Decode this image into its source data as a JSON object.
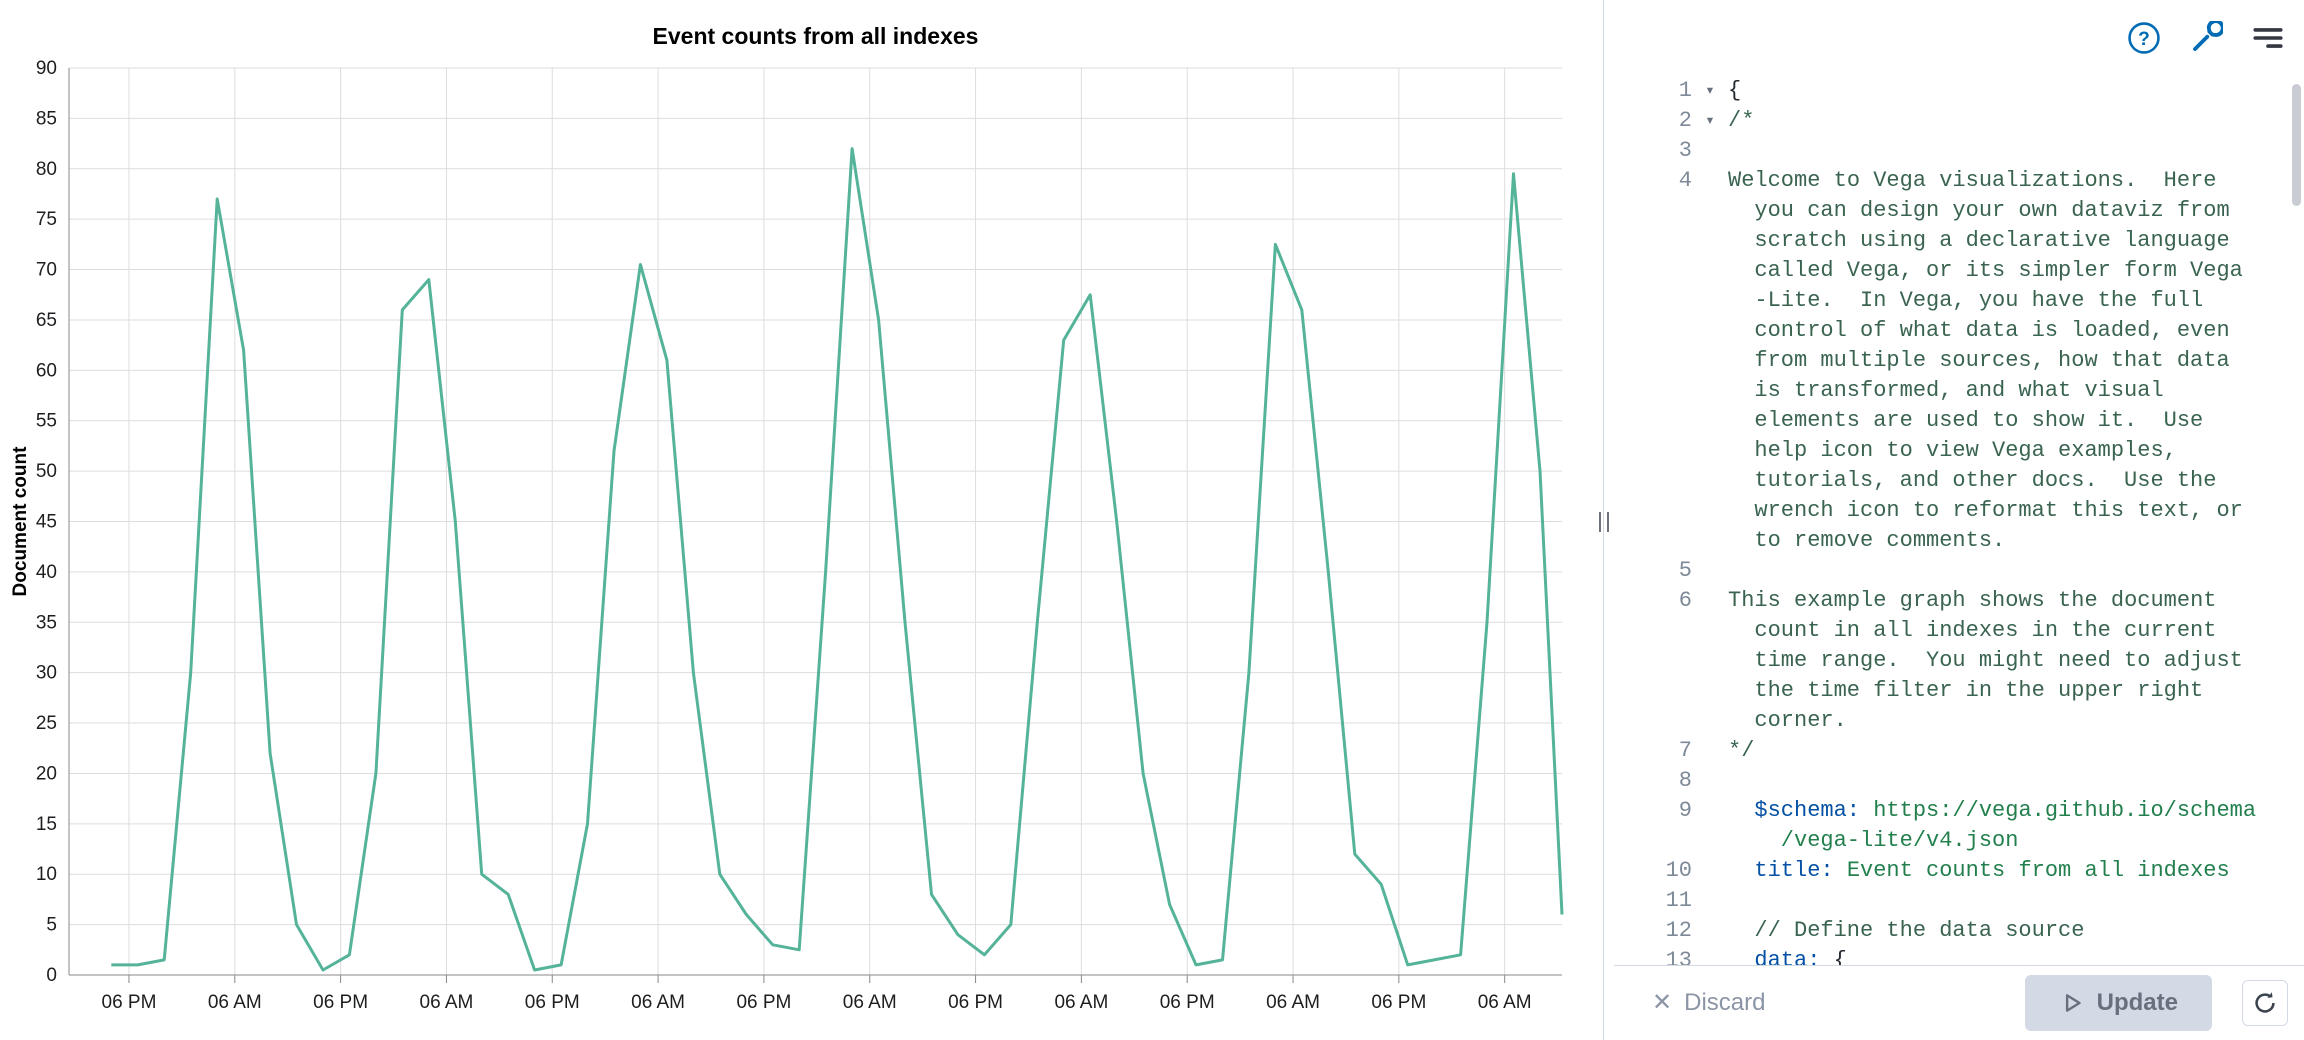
{
  "colors": {
    "accent_blue": "#006bb4",
    "chart_line": "#54b399",
    "grid": "#dddddd",
    "axis": "#888888",
    "token_plain": "#24292f",
    "token_comment": "#3a6450",
    "token_key": "#0451a5",
    "token_string": "#23804e"
  },
  "chart_data": {
    "type": "line",
    "title": "Event counts from all indexes",
    "xlabel": "",
    "ylabel": "Document count",
    "ylim": [
      0,
      90
    ],
    "ytick_step": 5,
    "xlim": [
      -0.8,
      168.5
    ],
    "x_unit": "hours",
    "grid": true,
    "legend": "none",
    "x_ticks": [
      {
        "x": 6,
        "label": "06 PM"
      },
      {
        "x": 18,
        "label": "06 AM"
      },
      {
        "x": 30,
        "label": "06 PM"
      },
      {
        "x": 42,
        "label": "06 AM"
      },
      {
        "x": 54,
        "label": "06 PM"
      },
      {
        "x": 66,
        "label": "06 AM"
      },
      {
        "x": 78,
        "label": "06 PM"
      },
      {
        "x": 90,
        "label": "06 AM"
      },
      {
        "x": 102,
        "label": "06 PM"
      },
      {
        "x": 114,
        "label": "06 AM"
      },
      {
        "x": 126,
        "label": "06 PM"
      },
      {
        "x": 138,
        "label": "06 AM"
      },
      {
        "x": 150,
        "label": "06 PM"
      },
      {
        "x": 162,
        "label": "06 AM"
      }
    ],
    "series": [
      {
        "name": "Document count",
        "color": "#54b399",
        "x": [
          4,
          7,
          10,
          13,
          16,
          19,
          22,
          25,
          28,
          31,
          34,
          37,
          40,
          43,
          46,
          49,
          52,
          55,
          58,
          61,
          64,
          67,
          70,
          73,
          76,
          79,
          82,
          85,
          88,
          91,
          94,
          97,
          100,
          103,
          106,
          109,
          112,
          115,
          118,
          121,
          124,
          127,
          130,
          133,
          136,
          139,
          142,
          145,
          148,
          151,
          154,
          157,
          160,
          163,
          166,
          168.5
        ],
        "values": [
          1,
          1,
          1.5,
          30,
          77,
          62,
          22,
          5,
          0.5,
          2,
          20,
          66,
          69,
          45,
          10,
          8,
          0.5,
          1,
          15,
          52,
          70.5,
          61,
          30,
          10,
          6,
          3,
          2.5,
          40,
          82,
          65,
          35,
          8,
          4,
          2,
          5,
          35,
          63,
          67.5,
          45,
          20,
          7,
          1,
          1.5,
          30,
          72.5,
          66,
          40,
          12,
          9,
          1,
          1.5,
          2,
          35,
          79.5,
          50,
          6
        ]
      }
    ]
  },
  "right_panel": {
    "toolbar": {
      "icons": [
        {
          "name": "help-icon"
        },
        {
          "name": "wrench-icon"
        },
        {
          "name": "align-lines-icon"
        }
      ]
    },
    "editor": {
      "fold_glyph": "▾",
      "rows": [
        [
          "1",
          1,
          0,
          [
            [
              "p",
              "{"
            ]
          ]
        ],
        [
          "2",
          1,
          0,
          [
            [
              "c",
              "/*"
            ]
          ]
        ],
        [
          "3",
          0,
          0,
          []
        ],
        [
          "4",
          0,
          0,
          [
            [
              "c",
              "Welcome to Vega visualizations.  Here"
            ]
          ]
        ],
        [
          "",
          0,
          2,
          [
            [
              "c",
              "you can design your own dataviz from"
            ]
          ]
        ],
        [
          "",
          0,
          2,
          [
            [
              "c",
              "scratch using a declarative language"
            ]
          ]
        ],
        [
          "",
          0,
          2,
          [
            [
              "c",
              "called Vega, or its simpler form Vega"
            ]
          ]
        ],
        [
          "",
          0,
          2,
          [
            [
              "c",
              "-Lite.  In Vega, you have the full"
            ]
          ]
        ],
        [
          "",
          0,
          2,
          [
            [
              "c",
              "control of what data is loaded, even"
            ]
          ]
        ],
        [
          "",
          0,
          2,
          [
            [
              "c",
              "from multiple sources, how that data"
            ]
          ]
        ],
        [
          "",
          0,
          2,
          [
            [
              "c",
              "is transformed, and what visual"
            ]
          ]
        ],
        [
          "",
          0,
          2,
          [
            [
              "c",
              "elements are used to show it.  Use"
            ]
          ]
        ],
        [
          "",
          0,
          2,
          [
            [
              "c",
              "help icon to view Vega examples,"
            ]
          ]
        ],
        [
          "",
          0,
          2,
          [
            [
              "c",
              "tutorials, and other docs.  Use the"
            ]
          ]
        ],
        [
          "",
          0,
          2,
          [
            [
              "c",
              "wrench icon to reformat this text, or"
            ]
          ]
        ],
        [
          "",
          0,
          2,
          [
            [
              "c",
              "to remove comments."
            ]
          ]
        ],
        [
          "5",
          0,
          0,
          []
        ],
        [
          "6",
          0,
          0,
          [
            [
              "c",
              "This example graph shows the document"
            ]
          ]
        ],
        [
          "",
          0,
          2,
          [
            [
              "c",
              "count in all indexes in the current"
            ]
          ]
        ],
        [
          "",
          0,
          2,
          [
            [
              "c",
              "time range.  You might need to adjust"
            ]
          ]
        ],
        [
          "",
          0,
          2,
          [
            [
              "c",
              "the time filter in the upper right"
            ]
          ]
        ],
        [
          "",
          0,
          2,
          [
            [
              "c",
              "corner."
            ]
          ]
        ],
        [
          "7",
          0,
          0,
          [
            [
              "c",
              "*/"
            ]
          ]
        ],
        [
          "8",
          0,
          0,
          []
        ],
        [
          "9",
          0,
          2,
          [
            [
              "k",
              "$schema:"
            ],
            [
              "p",
              " "
            ],
            [
              "s",
              "https://vega.github.io/schema"
            ]
          ]
        ],
        [
          "",
          0,
          4,
          [
            [
              "s",
              "/vega-lite/v4.json"
            ]
          ]
        ],
        [
          "10",
          0,
          2,
          [
            [
              "k",
              "title:"
            ],
            [
              "p",
              " "
            ],
            [
              "s",
              "Event counts from all indexes"
            ]
          ]
        ],
        [
          "11",
          0,
          0,
          []
        ],
        [
          "12",
          0,
          2,
          [
            [
              "c",
              "// Define the data source"
            ]
          ]
        ],
        [
          "13",
          0,
          2,
          [
            [
              "k",
              "data:"
            ],
            [
              "p",
              " {"
            ]
          ]
        ]
      ]
    },
    "footer": {
      "close_glyph": "✕",
      "discard_label": "Discard",
      "update_label": "Update"
    }
  }
}
